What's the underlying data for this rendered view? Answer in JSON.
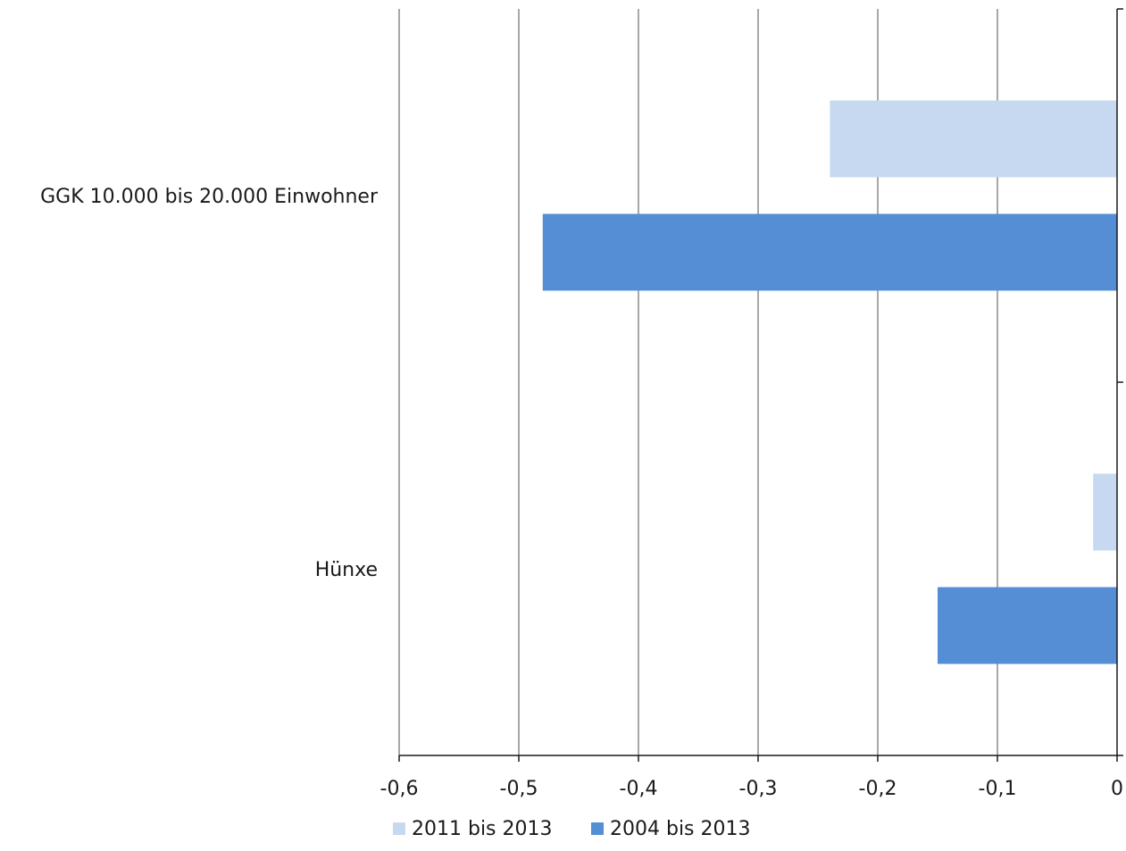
{
  "chart_data": {
    "type": "bar",
    "orientation": "horizontal",
    "categories": [
      "GGK 10.000 bis 20.000 Einwohner",
      "Hünxe"
    ],
    "series": [
      {
        "name": "2011 bis 2013",
        "values": [
          -0.24,
          -0.02
        ],
        "color": "#c6d9f1"
      },
      {
        "name": "2004 bis 2013",
        "values": [
          -0.48,
          -0.15
        ],
        "color": "#558ed5"
      }
    ],
    "xlim": [
      -0.6,
      0
    ],
    "x_ticks": [
      -0.6,
      -0.5,
      -0.4,
      -0.3,
      -0.2,
      -0.1,
      0
    ],
    "x_tick_labels": [
      "-0,6",
      "-0,5",
      "-0,4",
      "-0,3",
      "-0,2",
      "-0,1",
      "0"
    ],
    "grid": "vertical",
    "legend_position": "bottom",
    "colors": {
      "grid": "#8c8c8c",
      "axis": "#1a1a1a"
    }
  }
}
